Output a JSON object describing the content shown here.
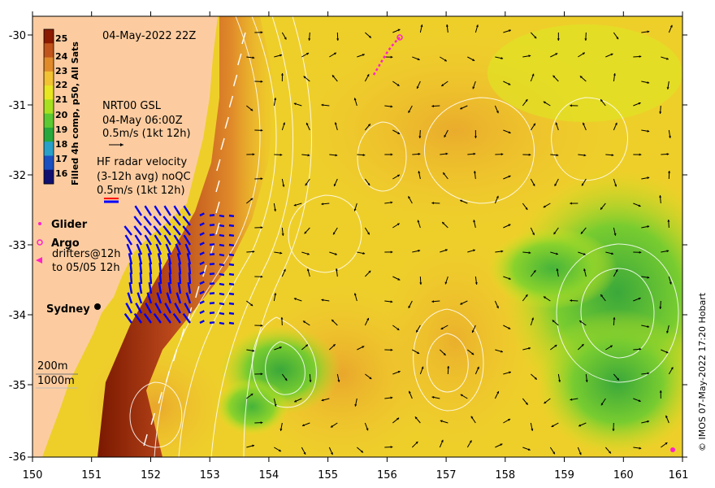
{
  "map": {
    "date_label": "04-May-2022 22Z",
    "credit": "© IMOS 07-May-2022 17:20 Hobart",
    "x_ticks": [
      "150",
      "151",
      "152",
      "153",
      "154",
      "155",
      "156",
      "157",
      "158",
      "159",
      "160",
      "161"
    ],
    "y_ticks": [
      "-30",
      "-31",
      "-32",
      "-33",
      "-34",
      "-35",
      "-36"
    ]
  },
  "colorbar": {
    "title": "Filled 4h comp, p50, All Sats",
    "ticks": [
      "25",
      "24",
      "23",
      "22",
      "21",
      "20",
      "19",
      "18",
      "17",
      "16"
    ],
    "colors": [
      "#8b1a00",
      "#c0541c",
      "#e08a2a",
      "#f2c232",
      "#e8e620",
      "#a8e020",
      "#5cc832",
      "#28a83c",
      "#2aa0c8",
      "#1a50c0",
      "#101070"
    ]
  },
  "legend": {
    "gsl_title": "NRT00 GSL",
    "gsl_time": "04-May 06:00Z",
    "gsl_scale": "0.5m/s (1kt 12h)",
    "hf_title": "HF radar velocity",
    "hf_sub": "(3-12h avg) noQC",
    "hf_scale": "0.5m/s (1kt 12h)",
    "glider_label": "Glider",
    "argo_label": "Argo",
    "drifters_label_1": "drifters@12h",
    "drifters_label_2": "to 05/05 12h",
    "isobath_200": "200m",
    "isobath_1000": "1000m",
    "city_label": "Sydney"
  }
}
